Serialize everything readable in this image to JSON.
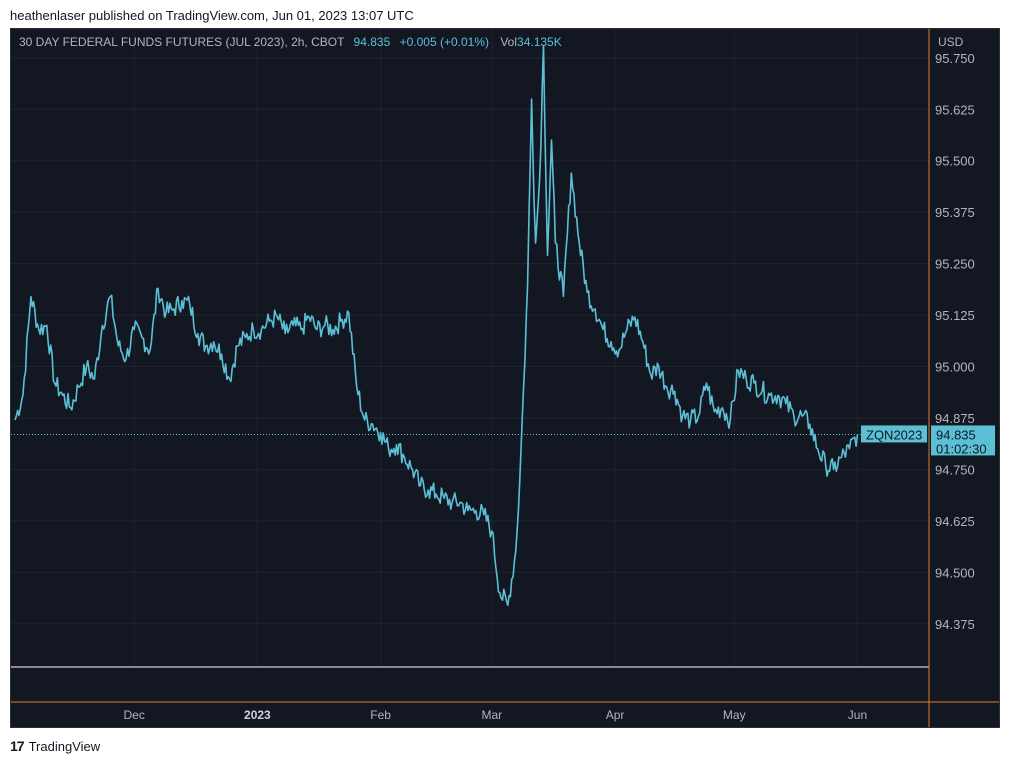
{
  "header": {
    "caption": "heathenlaser published on TradingView.com, Jun 01, 2023 13:07 UTC"
  },
  "legend": {
    "symbol_line": "30 DAY FEDERAL FUNDS FUTURES (JUL 2023), 2h, CBOT",
    "last_price": "94.835",
    "change": "+0.005 (+0.01%)",
    "volume_label": "Vol",
    "volume_value": "34.135K"
  },
  "axis": {
    "currency": "USD"
  },
  "price_tag": {
    "ticker": "ZQN2023",
    "price": "94.835",
    "countdown": "01:02:30"
  },
  "footer": {
    "brand": "TradingView"
  },
  "colors": {
    "background": "#131722",
    "line": "#5bc0d6",
    "grid": "#1f2431",
    "crosshair": "#e67e22",
    "text": "#b2b5be"
  },
  "chart_data": {
    "type": "line",
    "ylim": [
      94.27,
      95.82
    ],
    "y_ticks": [
      "95.750",
      "95.625",
      "95.500",
      "95.375",
      "95.250",
      "95.125",
      "95.000",
      "94.875",
      "94.750",
      "94.625",
      "94.500",
      "94.375"
    ],
    "x_ticks": [
      {
        "label": "Dec",
        "day": 30,
        "bold": false
      },
      {
        "label": "2023",
        "day": 61,
        "bold": true
      },
      {
        "label": "Feb",
        "day": 92,
        "bold": false
      },
      {
        "label": "Mar",
        "day": 120,
        "bold": false
      },
      {
        "label": "Apr",
        "day": 151,
        "bold": false
      },
      {
        "label": "May",
        "day": 181,
        "bold": false
      },
      {
        "label": "Jun",
        "day": 212,
        "bold": false
      }
    ],
    "last_value": 94.835,
    "x": [
      0,
      2,
      4,
      6,
      8,
      10,
      12,
      14,
      16,
      18,
      20,
      22,
      24,
      26,
      28,
      30,
      32,
      34,
      36,
      38,
      40,
      42,
      44,
      46,
      48,
      50,
      52,
      54,
      56,
      58,
      60,
      62,
      64,
      66,
      68,
      70,
      72,
      74,
      76,
      78,
      80,
      82,
      84,
      86,
      88,
      90,
      92,
      94,
      96,
      98,
      100,
      102,
      104,
      106,
      108,
      110,
      112,
      114,
      116,
      118,
      120,
      122,
      124,
      126,
      127,
      128,
      129,
      130,
      131,
      132,
      133,
      134,
      135,
      136,
      138,
      140,
      142,
      144,
      146,
      148,
      150,
      152,
      154,
      156,
      158,
      160,
      162,
      164,
      166,
      168,
      170,
      172,
      174,
      176,
      178,
      180,
      182,
      184,
      186,
      188,
      190,
      192,
      194,
      196,
      198,
      200,
      202,
      204,
      206,
      208,
      210,
      212
    ],
    "y": [
      94.87,
      94.93,
      95.17,
      95.09,
      95.1,
      94.96,
      94.93,
      94.9,
      94.95,
      95.0,
      94.97,
      95.1,
      95.17,
      95.05,
      95.02,
      95.09,
      95.07,
      95.04,
      95.19,
      95.13,
      95.14,
      95.16,
      95.15,
      95.08,
      95.05,
      95.06,
      95.03,
      94.97,
      95.05,
      95.07,
      95.09,
      95.09,
      95.11,
      95.12,
      95.08,
      95.1,
      95.09,
      95.12,
      95.09,
      95.1,
      95.09,
      95.11,
      95.13,
      94.95,
      94.87,
      94.86,
      94.84,
      94.8,
      94.81,
      94.78,
      94.75,
      94.71,
      94.7,
      94.69,
      94.68,
      94.67,
      94.67,
      94.65,
      94.65,
      94.64,
      94.6,
      94.45,
      94.42,
      94.55,
      94.72,
      94.95,
      95.2,
      95.65,
      95.3,
      95.45,
      95.78,
      95.27,
      95.55,
      95.3,
      95.17,
      95.47,
      95.3,
      95.18,
      95.14,
      95.09,
      95.06,
      95.04,
      95.09,
      95.12,
      95.06,
      94.98,
      95.0,
      94.95,
      94.94,
      94.88,
      94.87,
      94.88,
      94.96,
      94.89,
      94.9,
      94.87,
      94.99,
      94.97,
      94.96,
      94.94,
      94.93,
      94.93,
      94.91,
      94.88,
      94.88,
      94.86,
      94.8,
      94.76,
      94.75,
      94.78,
      94.8,
      94.835
    ]
  }
}
